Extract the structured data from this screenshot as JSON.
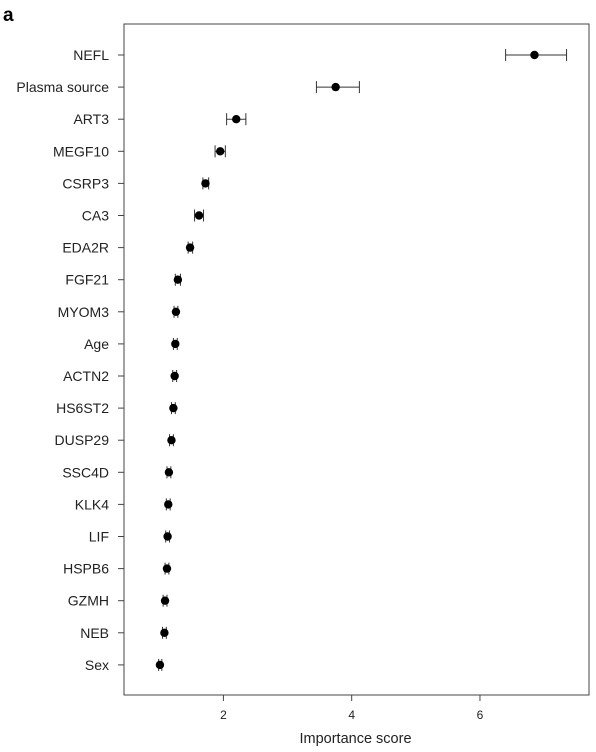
{
  "panel_label": "a",
  "chart_data": {
    "type": "scatter",
    "orientation": "horizontal",
    "title": "",
    "xlabel": "Importance score",
    "ylabel": "",
    "xlim": [
      0.45,
      7.7
    ],
    "xticks": [
      2,
      4,
      6
    ],
    "grid": false,
    "legend": "none",
    "categories": [
      "NEFL",
      "Plasma source",
      "ART3",
      "MEGF10",
      "CSRP3",
      "CA3",
      "EDA2R",
      "FGF21",
      "MYOM3",
      "Age",
      "ACTN2",
      "HS6ST2",
      "DUSP29",
      "SSC4D",
      "KLK4",
      "LIF",
      "HSPB6",
      "GZMH",
      "NEB",
      "Sex"
    ],
    "values": [
      6.85,
      3.75,
      2.2,
      1.95,
      1.72,
      1.62,
      1.48,
      1.29,
      1.26,
      1.25,
      1.24,
      1.22,
      1.19,
      1.15,
      1.14,
      1.13,
      1.12,
      1.09,
      1.08,
      1.01
    ],
    "error_low": [
      6.4,
      3.45,
      2.05,
      1.87,
      1.68,
      1.55,
      1.45,
      1.25,
      1.23,
      1.22,
      1.21,
      1.19,
      1.16,
      1.12,
      1.11,
      1.1,
      1.09,
      1.06,
      1.05,
      0.99
    ],
    "error_high": [
      7.35,
      4.12,
      2.35,
      2.03,
      1.77,
      1.69,
      1.52,
      1.33,
      1.29,
      1.28,
      1.27,
      1.25,
      1.22,
      1.18,
      1.17,
      1.16,
      1.15,
      1.12,
      1.11,
      1.04
    ],
    "colors": {
      "point": "#000000",
      "errorbar": "#333333",
      "frame": "#444444"
    }
  }
}
